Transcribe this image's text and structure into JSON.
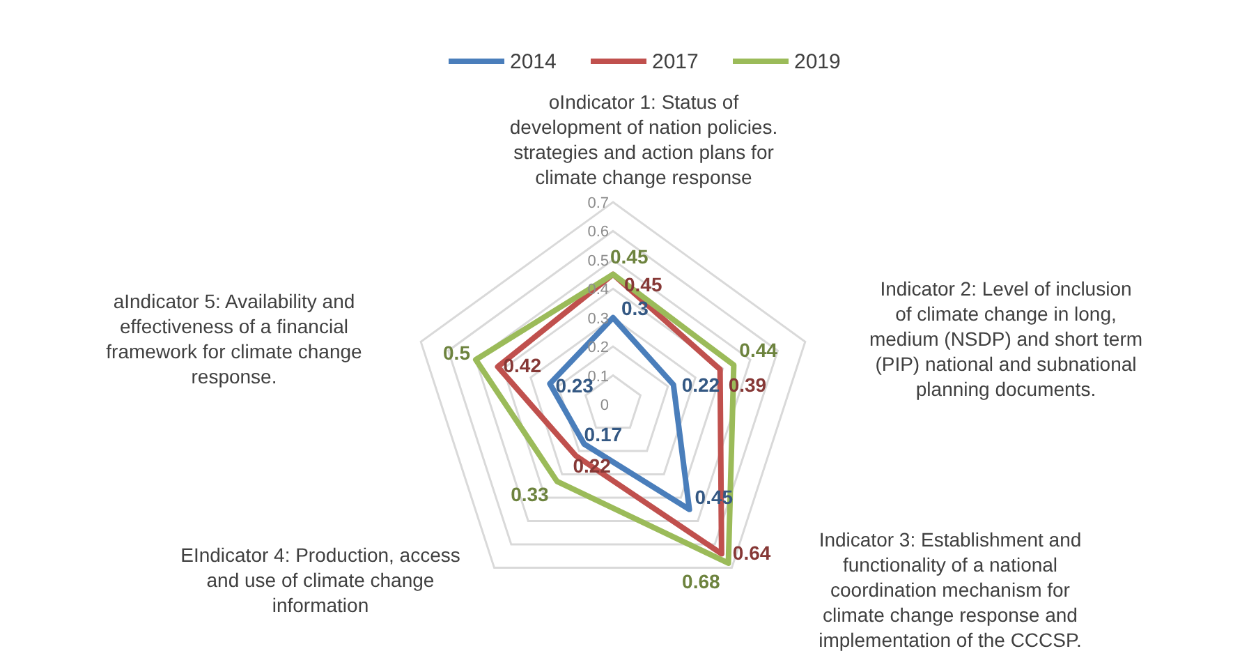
{
  "chart_data": {
    "type": "radar",
    "categories": [
      "oIndicator 1: Status of development of nation policies. strategies and action plans  for climate change response",
      "Indicator 2: Level of inclusion of climate change in long, medium (NSDP) and short term (PIP) national and subnational planning documents.",
      "Indicator 3: Establishment and functionality of a national coordination mechanism for climate change response and implementation of the CCCSP.",
      "EIndicator 4: Production, access and use of climate change information",
      "aIndicator 5: Availability and effectiveness of a financial framework for climate change response."
    ],
    "series": [
      {
        "name": "2014",
        "color": "#4a7ebb",
        "values": [
          0.3,
          0.22,
          0.45,
          0.17,
          0.23
        ]
      },
      {
        "name": "2017",
        "color": "#c0504d",
        "values": [
          0.45,
          0.39,
          0.64,
          0.22,
          0.42
        ]
      },
      {
        "name": "2019",
        "color": "#9bbb59",
        "values": [
          0.45,
          0.44,
          0.68,
          0.33,
          0.5
        ]
      }
    ],
    "ylim": [
      0,
      0.7
    ],
    "yticks": [
      0,
      0.1,
      0.2,
      0.3,
      0.4,
      0.5,
      0.6,
      0.7
    ],
    "grid": true,
    "legend": "top",
    "data_labels": true
  }
}
